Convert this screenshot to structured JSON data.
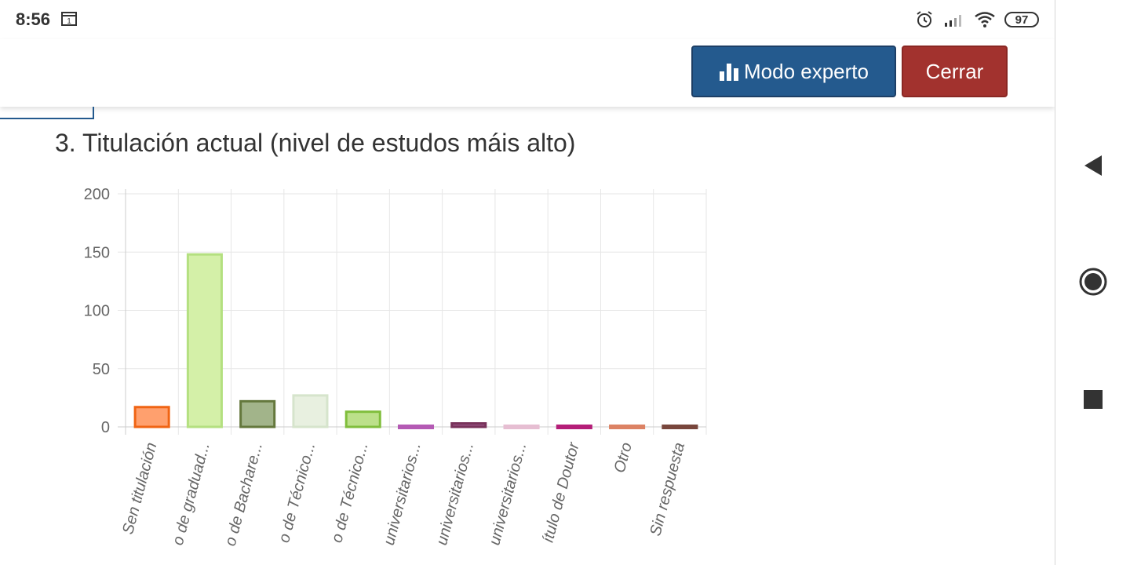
{
  "status_bar": {
    "time": "8:56",
    "calendar_day": "1",
    "battery": "97",
    "icons": [
      "calendar-icon",
      "alarm-icon",
      "signal-icon",
      "wifi-icon",
      "battery-icon"
    ]
  },
  "toolbar": {
    "expert_label": "Modo experto",
    "expert_icon": "bar-chart-icon",
    "close_label": "Cerrar",
    "colors": {
      "expert": "#245a8e",
      "close": "#a2322e"
    }
  },
  "question": {
    "title": "3. Titulación actual (nivel de estudos máis alto)"
  },
  "chart_data": {
    "type": "bar",
    "title": "",
    "xlabel": "",
    "ylabel": "",
    "ylim": [
      0,
      200
    ],
    "yticks": [
      0,
      50,
      100,
      150,
      200
    ],
    "grid": true,
    "categories": [
      "Sen titulación",
      "o de graduad...",
      "o de Bachare...",
      "o de Técnico...",
      "o de Técnico...",
      "universitarios...",
      "universitarios...",
      "universitarios...",
      "ítulo de Doutor",
      "Otro",
      "Sin respuesta"
    ],
    "values": [
      17,
      148,
      22,
      27,
      13,
      2,
      3,
      0,
      0,
      1,
      2
    ],
    "colors": [
      {
        "fill": "#ffa06e",
        "stroke": "#f06414"
      },
      {
        "fill": "#d4f0a8",
        "stroke": "#b4e080"
      },
      {
        "fill": "#a2b48a",
        "stroke": "#64783c"
      },
      {
        "fill": "#e8f0e0",
        "stroke": "#d6e4cc"
      },
      {
        "fill": "#bce08a",
        "stroke": "#80be3c"
      },
      {
        "fill": "#d28cd2",
        "stroke": "#b45ab4"
      },
      {
        "fill": "#965082",
        "stroke": "#78325a"
      },
      {
        "fill": "#f0d2e6",
        "stroke": "#e6bed2"
      },
      {
        "fill": "#d23c96",
        "stroke": "#b41e78"
      },
      {
        "fill": "#f0a08c",
        "stroke": "#dc8264"
      },
      {
        "fill": "#a06450",
        "stroke": "#78463c"
      }
    ]
  },
  "nav_bar": {
    "icons": [
      "back-icon",
      "home-icon",
      "recents-icon"
    ]
  }
}
